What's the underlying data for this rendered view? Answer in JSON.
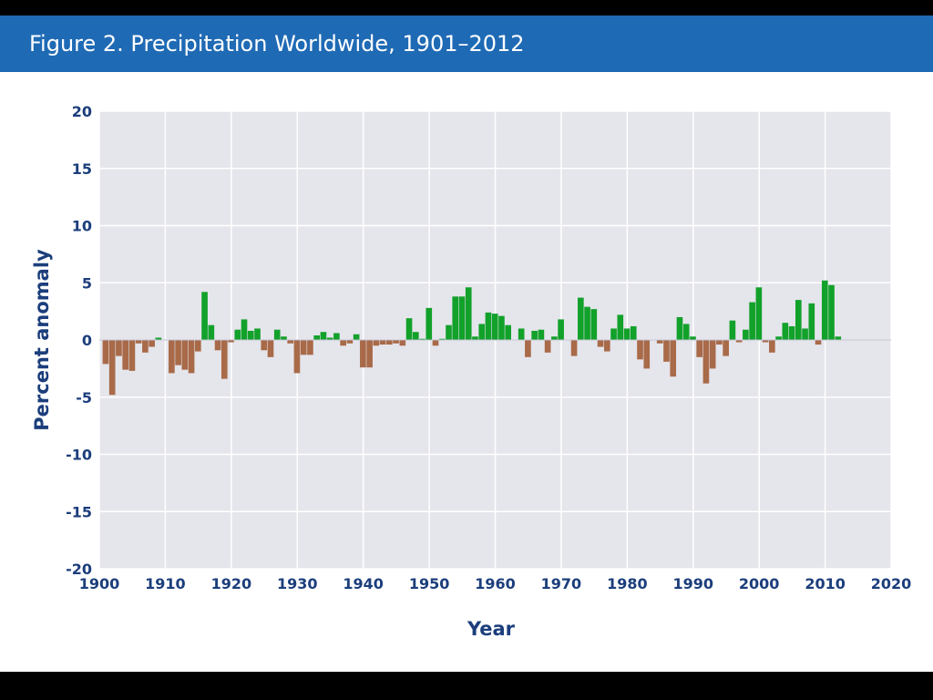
{
  "chart_data": {
    "type": "bar",
    "title": "Figure 2. Precipitation Worldwide, 1901–2012",
    "xlabel": "Year",
    "ylabel": "Percent anomaly",
    "xlim": [
      1900,
      2020
    ],
    "ylim": [
      -20,
      20
    ],
    "xticks": [
      "1900",
      "1910",
      "1920",
      "1930",
      "1940",
      "1950",
      "1960",
      "1970",
      "1980",
      "1990",
      "2000",
      "2010",
      "2020"
    ],
    "yticks": [
      "20",
      "15",
      "10",
      "5",
      "0",
      "-5",
      "-10",
      "-15",
      "-20"
    ],
    "grid": true,
    "positive_color": "#12a12a",
    "negative_color": "#a86a48",
    "x": [
      1901,
      1902,
      1903,
      1904,
      1905,
      1906,
      1907,
      1908,
      1909,
      1910,
      1911,
      1912,
      1913,
      1914,
      1915,
      1916,
      1917,
      1918,
      1919,
      1920,
      1921,
      1922,
      1923,
      1924,
      1925,
      1926,
      1927,
      1928,
      1929,
      1930,
      1931,
      1932,
      1933,
      1934,
      1935,
      1936,
      1937,
      1938,
      1939,
      1940,
      1941,
      1942,
      1943,
      1944,
      1945,
      1946,
      1947,
      1948,
      1949,
      1950,
      1951,
      1952,
      1953,
      1954,
      1955,
      1956,
      1957,
      1958,
      1959,
      1960,
      1961,
      1962,
      1963,
      1964,
      1965,
      1966,
      1967,
      1968,
      1969,
      1970,
      1971,
      1972,
      1973,
      1974,
      1975,
      1976,
      1977,
      1978,
      1979,
      1980,
      1981,
      1982,
      1983,
      1984,
      1985,
      1986,
      1987,
      1988,
      1989,
      1990,
      1991,
      1992,
      1993,
      1994,
      1995,
      1996,
      1997,
      1998,
      1999,
      2000,
      2001,
      2002,
      2003,
      2004,
      2005,
      2006,
      2007,
      2008,
      2009,
      2010,
      2011,
      2012
    ],
    "values": [
      -2.1,
      -4.8,
      -1.4,
      -2.6,
      -2.7,
      -0.3,
      -1.1,
      -0.6,
      0.2,
      0.0,
      -2.9,
      -2.2,
      -2.6,
      -2.9,
      -1.0,
      4.2,
      1.3,
      -0.9,
      -3.4,
      -0.2,
      0.9,
      1.8,
      0.8,
      1.0,
      -0.9,
      -1.5,
      0.9,
      0.3,
      -0.3,
      -2.9,
      -1.3,
      -1.3,
      0.4,
      0.7,
      0.2,
      0.6,
      -0.5,
      -0.3,
      0.5,
      -2.4,
      -2.4,
      -0.5,
      -0.4,
      -0.4,
      -0.3,
      -0.5,
      1.9,
      0.7,
      0.1,
      2.8,
      -0.5,
      0.1,
      1.3,
      3.8,
      3.8,
      4.6,
      0.3,
      1.4,
      2.4,
      2.3,
      2.1,
      1.3,
      0.0,
      1.0,
      -1.5,
      0.8,
      0.9,
      -1.1,
      0.3,
      1.8,
      0.0,
      -1.4,
      3.7,
      2.9,
      2.7,
      -0.6,
      -1.0,
      1.0,
      2.2,
      1.0,
      1.2,
      -1.7,
      -2.5,
      0.0,
      -0.3,
      -1.9,
      -3.2,
      2.0,
      1.4,
      0.3,
      -1.5,
      -3.8,
      -2.5,
      -0.4,
      -1.4,
      1.7,
      -0.2,
      0.9,
      3.3,
      4.6,
      -0.2,
      -1.1,
      0.3,
      1.5,
      1.2,
      3.5,
      1.0,
      3.2,
      -0.4,
      5.2,
      4.8,
      0.3
    ]
  }
}
